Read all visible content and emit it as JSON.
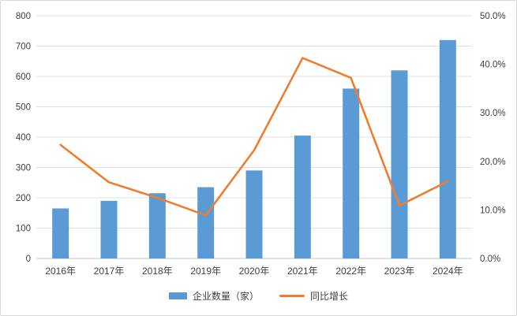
{
  "chart_data": {
    "type": "combo-bar-line",
    "categories": [
      "2016年",
      "2017年",
      "2018年",
      "2019年",
      "2020年",
      "2021年",
      "2022年",
      "2023年",
      "2024年"
    ],
    "series": [
      {
        "name": "企业数量（家）",
        "type": "bar",
        "axis": "left",
        "color": "#5b9bd5",
        "values": [
          165,
          190,
          215,
          235,
          290,
          405,
          560,
          620,
          720
        ]
      },
      {
        "name": "同比增长",
        "type": "line",
        "axis": "right",
        "color": "#ed7d31",
        "unit": "%",
        "values": [
          23.4,
          15.7,
          12.5,
          8.9,
          22.3,
          41.3,
          37.2,
          10.9,
          15.9
        ]
      }
    ],
    "left_axis": {
      "min": 0,
      "max": 800,
      "tick_labels": [
        "0",
        "100",
        "200",
        "300",
        "400",
        "500",
        "600",
        "700",
        "800"
      ]
    },
    "right_axis": {
      "min": 0,
      "max": 50,
      "tick_labels": [
        "0.0%",
        "10.0%",
        "20.0%",
        "30.0%",
        "40.0%",
        "50.0%"
      ]
    },
    "title": "",
    "grid": "horizontal",
    "legend_position": "bottom",
    "colors": {
      "grid_line": "#e0e0e0",
      "axis_line": "#c6c6c6",
      "label_text": "#404040",
      "background": "#ffffff",
      "frame_border": "#d9d9d9"
    }
  }
}
